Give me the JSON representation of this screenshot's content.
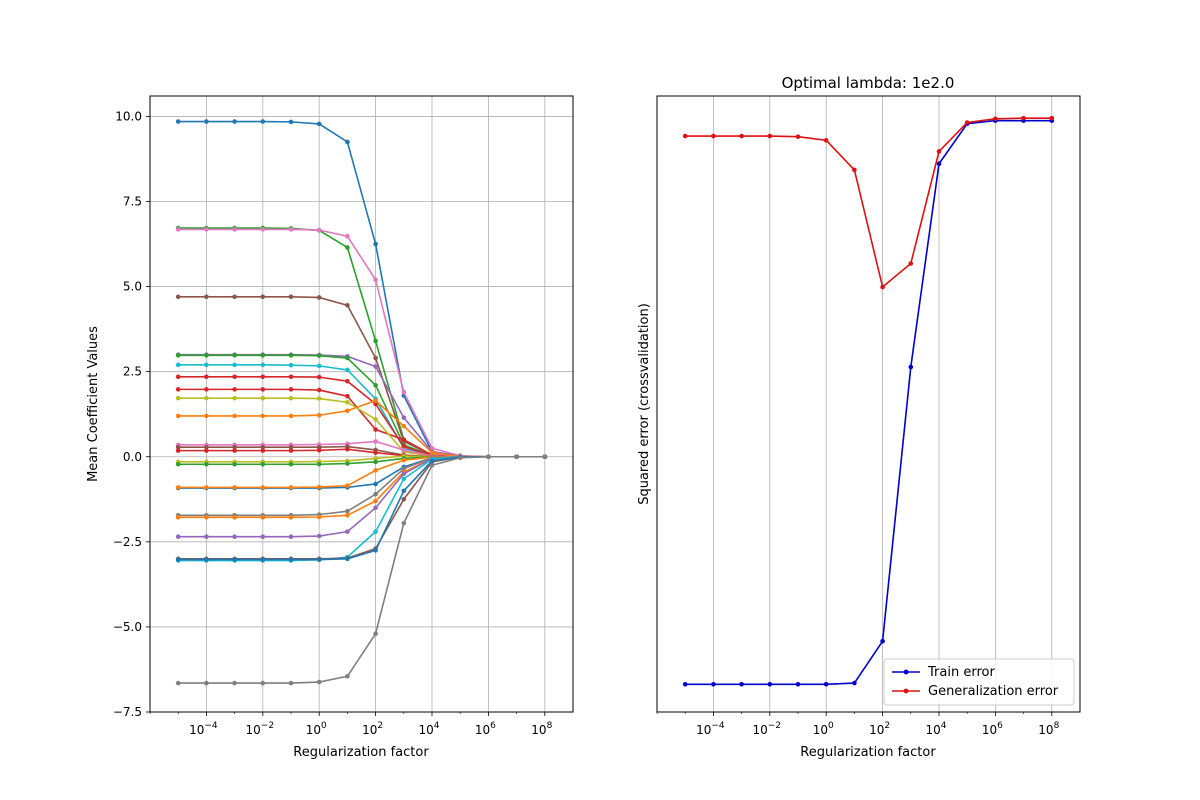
{
  "chart_data": [
    {
      "type": "line",
      "title": "",
      "xlabel": "Regularization factor",
      "ylabel": "Mean Coefficient Values",
      "xscale": "log",
      "xlim": [
        1e-06,
        1000000000.0
      ],
      "ylim": [
        -7.5,
        10.6
      ],
      "xticks": [
        0.0001,
        0.01,
        1,
        100,
        10000,
        1000000,
        100000000
      ],
      "xtick_labels": [
        {
          "base": "10",
          "exp": "−4"
        },
        {
          "base": "10",
          "exp": "−2"
        },
        {
          "base": "10",
          "exp": "0"
        },
        {
          "base": "10",
          "exp": "2"
        },
        {
          "base": "10",
          "exp": "4"
        },
        {
          "base": "10",
          "exp": "6"
        },
        {
          "base": "10",
          "exp": "8"
        }
      ],
      "yticks": [
        -7.5,
        -5.0,
        -2.5,
        0.0,
        2.5,
        5.0,
        7.5,
        10.0
      ],
      "ytick_labels": [
        "−7.5",
        "−5.0",
        "−2.5",
        "0.0",
        "2.5",
        "5.0",
        "7.5",
        "10.0"
      ],
      "grid": true,
      "legend": "none",
      "x": [
        1e-05,
        0.0001,
        0.001,
        0.01,
        0.1,
        1,
        10,
        100,
        1000,
        10000,
        100000,
        1000000,
        10000000,
        100000000
      ],
      "series": [
        {
          "color": "#1f77b4",
          "values": [
            9.85,
            9.85,
            9.85,
            9.85,
            9.84,
            9.78,
            9.25,
            6.25,
            1.8,
            0.15,
            0.02,
            0,
            0,
            0
          ]
        },
        {
          "color": "#2ca02c",
          "values": [
            6.72,
            6.72,
            6.72,
            6.72,
            6.71,
            6.65,
            6.15,
            3.4,
            0.5,
            0.05,
            0,
            0,
            0,
            0
          ]
        },
        {
          "color": "#e377c2",
          "values": [
            6.68,
            6.68,
            6.68,
            6.68,
            6.68,
            6.66,
            6.48,
            5.2,
            1.9,
            0.25,
            0.03,
            0,
            0,
            0
          ]
        },
        {
          "color": "#8c564b",
          "values": [
            4.7,
            4.7,
            4.7,
            4.7,
            4.7,
            4.68,
            4.45,
            2.9,
            0.45,
            0.05,
            0,
            0,
            0,
            0
          ]
        },
        {
          "color": "#9467bd",
          "values": [
            3.0,
            3.0,
            3.0,
            3.0,
            3.0,
            2.99,
            2.95,
            2.65,
            1.15,
            0.15,
            0.02,
            0,
            0,
            0
          ]
        },
        {
          "color": "#2ca02c",
          "values": [
            2.98,
            2.98,
            2.98,
            2.98,
            2.98,
            2.97,
            2.9,
            2.1,
            0.35,
            0.03,
            0,
            0,
            0,
            0
          ]
        },
        {
          "color": "#17becf",
          "values": [
            2.7,
            2.7,
            2.7,
            2.7,
            2.69,
            2.67,
            2.55,
            1.7,
            0.25,
            0.02,
            0,
            0,
            0,
            0
          ]
        },
        {
          "color": "#d62728",
          "values": [
            2.35,
            2.35,
            2.35,
            2.35,
            2.35,
            2.34,
            2.22,
            1.55,
            0.3,
            0.03,
            0,
            0,
            0,
            0
          ]
        },
        {
          "color": "#d62728",
          "values": [
            1.98,
            1.98,
            1.98,
            1.98,
            1.98,
            1.96,
            1.78,
            0.8,
            0.5,
            0.05,
            0,
            0,
            0,
            0
          ]
        },
        {
          "color": "#bcbd22",
          "values": [
            1.72,
            1.72,
            1.72,
            1.72,
            1.72,
            1.71,
            1.6,
            1.1,
            0.15,
            0.01,
            0,
            0,
            0,
            0
          ]
        },
        {
          "color": "#ff7f0e",
          "values": [
            1.2,
            1.2,
            1.2,
            1.2,
            1.2,
            1.22,
            1.35,
            1.65,
            0.9,
            0.12,
            0.01,
            0,
            0,
            0
          ]
        },
        {
          "color": "#e377c2",
          "values": [
            0.35,
            0.35,
            0.35,
            0.35,
            0.35,
            0.36,
            0.38,
            0.45,
            0.2,
            0.02,
            0,
            0,
            0,
            0
          ]
        },
        {
          "color": "#8c564b",
          "values": [
            0.28,
            0.28,
            0.28,
            0.28,
            0.28,
            0.28,
            0.3,
            0.2,
            0.05,
            0.0,
            0,
            0,
            0,
            0
          ]
        },
        {
          "color": "#d62728",
          "values": [
            0.18,
            0.18,
            0.18,
            0.18,
            0.18,
            0.19,
            0.22,
            0.12,
            0.03,
            0.0,
            0,
            0,
            0,
            0
          ]
        },
        {
          "color": "#bcbd22",
          "values": [
            -0.15,
            -0.15,
            -0.15,
            -0.15,
            -0.15,
            -0.14,
            -0.12,
            -0.05,
            0.02,
            0.0,
            0,
            0,
            0,
            0
          ]
        },
        {
          "color": "#2ca02c",
          "values": [
            -0.22,
            -0.22,
            -0.22,
            -0.22,
            -0.22,
            -0.22,
            -0.2,
            -0.15,
            -0.05,
            0.0,
            0,
            0,
            0,
            0
          ]
        },
        {
          "color": "#1f77b4",
          "values": [
            -0.92,
            -0.92,
            -0.92,
            -0.92,
            -0.92,
            -0.92,
            -0.9,
            -0.8,
            -0.3,
            -0.03,
            0,
            0,
            0,
            0
          ]
        },
        {
          "color": "#ff7f0e",
          "values": [
            -0.9,
            -0.9,
            -0.9,
            -0.9,
            -0.9,
            -0.89,
            -0.85,
            -0.4,
            -0.1,
            -0.01,
            0,
            0,
            0,
            0
          ]
        },
        {
          "color": "#7f7f7f",
          "values": [
            -1.72,
            -1.72,
            -1.72,
            -1.72,
            -1.72,
            -1.7,
            -1.6,
            -1.1,
            -0.35,
            -0.03,
            0,
            0,
            0,
            0
          ]
        },
        {
          "color": "#ff7f0e",
          "values": [
            -1.78,
            -1.78,
            -1.78,
            -1.78,
            -1.78,
            -1.77,
            -1.72,
            -1.3,
            -0.45,
            -0.05,
            0,
            0,
            0,
            0
          ]
        },
        {
          "color": "#9467bd",
          "values": [
            -2.35,
            -2.35,
            -2.35,
            -2.35,
            -2.35,
            -2.33,
            -2.2,
            -1.5,
            -0.5,
            -0.05,
            0,
            0,
            0,
            0
          ]
        },
        {
          "color": "#17becf",
          "values": [
            -3.05,
            -3.05,
            -3.05,
            -3.05,
            -3.05,
            -3.03,
            -2.95,
            -2.2,
            -0.65,
            -0.07,
            0,
            0,
            0,
            0
          ]
        },
        {
          "color": "#8c564b",
          "values": [
            -3.0,
            -3.0,
            -3.0,
            -3.0,
            -3.0,
            -3.0,
            -2.98,
            -2.7,
            -1.25,
            -0.15,
            -0.01,
            0,
            0,
            0
          ]
        },
        {
          "color": "#1f77b4",
          "values": [
            -3.02,
            -3.02,
            -3.02,
            -3.02,
            -3.02,
            -3.02,
            -3.0,
            -2.75,
            -1.0,
            -0.12,
            -0.01,
            0,
            0,
            0
          ]
        },
        {
          "color": "#7f7f7f",
          "values": [
            -6.65,
            -6.65,
            -6.65,
            -6.65,
            -6.65,
            -6.62,
            -6.45,
            -5.2,
            -1.95,
            -0.25,
            -0.03,
            0,
            0,
            0
          ]
        }
      ]
    },
    {
      "type": "line",
      "title": "Optimal lambda: 1e2.0",
      "xlabel": "Regularization factor",
      "ylabel": "Squared error (crossvalidation)",
      "xscale": "log",
      "xlim": [
        1e-06,
        1000000000.0
      ],
      "ylim": [
        0.0,
        1.0
      ],
      "yticks_visible": false,
      "xticks": [
        0.0001,
        0.01,
        1,
        100,
        10000,
        1000000,
        100000000
      ],
      "xtick_labels": [
        {
          "base": "10",
          "exp": "−4"
        },
        {
          "base": "10",
          "exp": "−2"
        },
        {
          "base": "10",
          "exp": "0"
        },
        {
          "base": "10",
          "exp": "2"
        },
        {
          "base": "10",
          "exp": "4"
        },
        {
          "base": "10",
          "exp": "6"
        },
        {
          "base": "10",
          "exp": "8"
        }
      ],
      "grid": "x",
      "legend": "lower right",
      "x": [
        1e-05,
        0.0001,
        0.001,
        0.01,
        0.1,
        1,
        10,
        100,
        1000,
        10000,
        100000,
        1000000,
        10000000,
        100000000
      ],
      "series": [
        {
          "name": "Train error",
          "color": "#0000cc",
          "values": [
            0.045,
            0.045,
            0.045,
            0.045,
            0.045,
            0.045,
            0.047,
            0.115,
            0.56,
            0.89,
            0.955,
            0.96,
            0.96,
            0.96
          ]
        },
        {
          "name": "Generalization error",
          "color": "#dd1111",
          "values": [
            0.935,
            0.935,
            0.935,
            0.935,
            0.934,
            0.928,
            0.88,
            0.69,
            0.728,
            0.91,
            0.957,
            0.963,
            0.964,
            0.964
          ]
        }
      ]
    }
  ]
}
